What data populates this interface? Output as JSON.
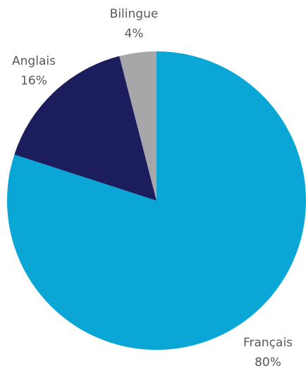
{
  "chart_data": {
    "type": "pie",
    "categories": [
      "Français",
      "Anglais",
      "Bilingue"
    ],
    "values": [
      80,
      16,
      4
    ],
    "value_labels": [
      "80%",
      "16%",
      "4%"
    ],
    "colors": [
      "#0aa6d6",
      "#1b1d5c",
      "#a7a7a9"
    ]
  }
}
